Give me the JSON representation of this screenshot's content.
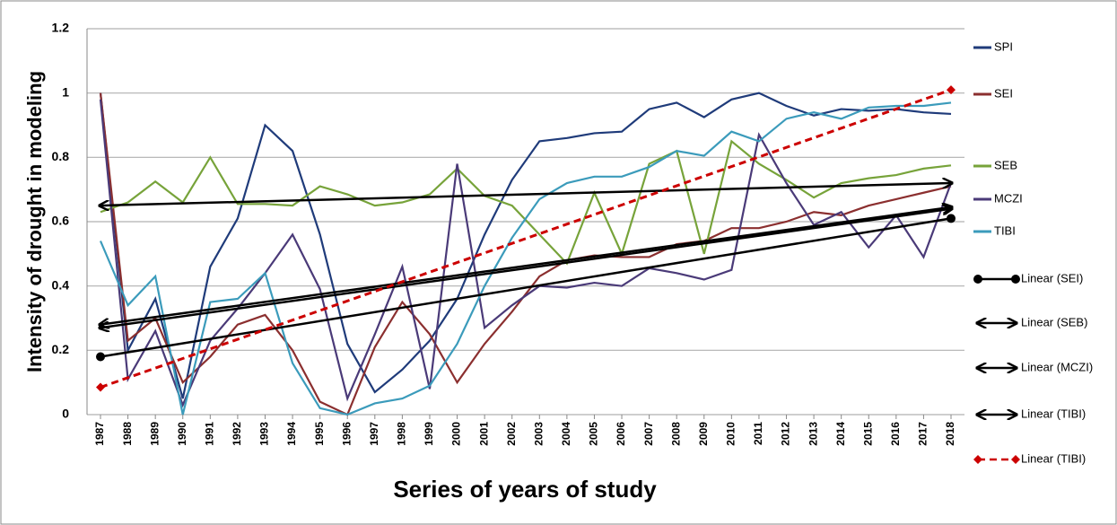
{
  "chart_data": {
    "type": "line",
    "y_label": "Intensity of drought in modeling",
    "x_label": "Series of years of study",
    "categories": [
      "1987",
      "1988",
      "1989",
      "1990",
      "1991",
      "1992",
      "1993",
      "1994",
      "1995",
      "1996",
      "1997",
      "1998",
      "1999",
      "2000",
      "2001",
      "2002",
      "2003",
      "2004",
      "2005",
      "2006",
      "2007",
      "2008",
      "2009",
      "2010",
      "2011",
      "2012",
      "2013",
      "2014",
      "2015",
      "2016",
      "2017",
      "2018"
    ],
    "ylim": [
      0,
      1.2
    ],
    "yticks": [
      0,
      0.2,
      0.4,
      0.6,
      0.8,
      1,
      1.2
    ],
    "grid": true,
    "legend": "right",
    "series": [
      {
        "name": "SPI",
        "color": "#1f3b7a",
        "values": [
          1.0,
          0.2,
          0.36,
          0.05,
          0.46,
          0.61,
          0.9,
          0.82,
          0.56,
          0.22,
          0.07,
          0.14,
          0.23,
          0.36,
          0.56,
          0.73,
          0.85,
          0.86,
          0.875,
          0.88,
          0.95,
          0.97,
          0.925,
          0.98,
          1.0,
          0.96,
          0.93,
          0.95,
          0.945,
          0.95,
          0.94,
          0.935
        ]
      },
      {
        "name": "SEI",
        "color": "#8b2f2f",
        "values": [
          1.0,
          0.23,
          0.3,
          0.1,
          0.18,
          0.28,
          0.31,
          0.2,
          0.04,
          0.0,
          0.21,
          0.35,
          0.25,
          0.1,
          0.22,
          0.32,
          0.43,
          0.48,
          0.495,
          0.49,
          0.49,
          0.53,
          0.54,
          0.58,
          0.58,
          0.6,
          0.63,
          0.62,
          0.65,
          0.67,
          0.69,
          0.71
        ]
      },
      {
        "name": "SEB",
        "color": "#77a33a",
        "values": [
          0.63,
          0.66,
          0.725,
          0.66,
          0.8,
          0.655,
          0.655,
          0.65,
          0.71,
          0.685,
          0.65,
          0.66,
          0.685,
          0.765,
          0.68,
          0.65,
          0.56,
          0.47,
          0.69,
          0.5,
          0.78,
          0.82,
          0.5,
          0.85,
          0.78,
          0.73,
          0.675,
          0.72,
          0.735,
          0.745,
          0.765,
          0.775
        ]
      },
      {
        "name": "MCZI",
        "color": "#4a3a78",
        "values": [
          0.98,
          0.11,
          0.26,
          0.03,
          0.23,
          0.33,
          0.44,
          0.56,
          0.39,
          0.05,
          0.25,
          0.46,
          0.08,
          0.78,
          0.27,
          0.34,
          0.4,
          0.395,
          0.41,
          0.4,
          0.455,
          0.44,
          0.42,
          0.45,
          0.87,
          0.72,
          0.59,
          0.63,
          0.52,
          0.62,
          0.49,
          0.72
        ]
      },
      {
        "name": "TIBI",
        "color": "#3b9bbb",
        "values": [
          0.54,
          0.34,
          0.43,
          0.0,
          0.35,
          0.36,
          0.44,
          0.16,
          0.02,
          0.0,
          0.035,
          0.05,
          0.09,
          0.22,
          0.4,
          0.55,
          0.67,
          0.72,
          0.74,
          0.74,
          0.77,
          0.82,
          0.805,
          0.88,
          0.85,
          0.92,
          0.94,
          0.92,
          0.955,
          0.96,
          0.96,
          0.97
        ]
      }
    ],
    "trendlines": [
      {
        "name": "Linear (SEI)",
        "color": "#000000",
        "marker": "circle",
        "dashed": false,
        "values": [
          0.18,
          0.61
        ]
      },
      {
        "name": "Linear (SEB)",
        "color": "#000000",
        "marker": "arrow",
        "dashed": false,
        "values": [
          0.65,
          0.72
        ]
      },
      {
        "name": "Linear (MCZI)",
        "color": "#000000",
        "marker": "arrow",
        "dashed": false,
        "values": [
          0.28,
          0.645
        ]
      },
      {
        "name": "Linear (TIBI)",
        "color": "#000000",
        "marker": "arrow",
        "dashed": false,
        "values": [
          0.27,
          0.64
        ]
      },
      {
        "name": "Linear (TIBI)",
        "color": "#cc0000",
        "marker": "diamond",
        "dashed": true,
        "values": [
          0.085,
          1.01
        ]
      }
    ]
  }
}
